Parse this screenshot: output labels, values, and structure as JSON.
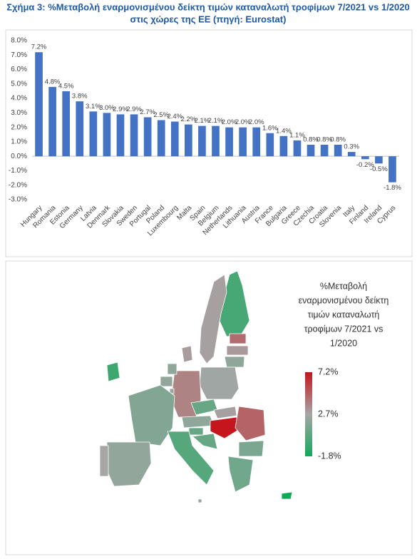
{
  "chart_data": [
    {
      "type": "bar",
      "title": [
        "Σχήμα 3: %Μεταβολή εναρμονισμένου δείκτη τιμών καταναλωτή τροφίμων 7/2021 vs 1/2020",
        "στις χώρες της ΕΕ (πηγή: Eurostat)"
      ],
      "categories": [
        "Hungary",
        "Romania",
        "Estonia",
        "Germany",
        "Latvia",
        "Denmark",
        "Slovakia",
        "Sweden",
        "Portugal",
        "Poland",
        "Luxembourg",
        "Malta",
        "Spain",
        "Belgium",
        "Netherlands",
        "Lithuania",
        "Austria",
        "France",
        "Bulgaria",
        "Greece",
        "Czechia",
        "Croatia",
        "Slovenia",
        "Italy",
        "Finland",
        "Ireland",
        "Cyprus"
      ],
      "values": [
        7.2,
        4.8,
        4.5,
        3.8,
        3.1,
        3.0,
        2.9,
        2.9,
        2.7,
        2.5,
        2.4,
        2.2,
        2.1,
        2.1,
        2.0,
        2.0,
        2.0,
        1.6,
        1.4,
        1.1,
        0.8,
        0.8,
        0.8,
        0.3,
        -0.2,
        -0.5,
        -1.8
      ],
      "value_labels": [
        "7.2%",
        "4.8%",
        "4.5%",
        "3.8%",
        "3.1%",
        "3.0%",
        "2.9%",
        "2.9%",
        "2.7%",
        "2.5%",
        "2.4%",
        "2.2%",
        "2.1%",
        "2.1%",
        "2.0%",
        "2.0%",
        "2.0%",
        "1.6%",
        "1.4%",
        "1.1%",
        "0.8%",
        "0.8%",
        "0.8%",
        "0.3%",
        "-0.2%",
        "-0.5%",
        "-1.8%"
      ],
      "color": "#4472c4",
      "ylim": [
        -3,
        8
      ],
      "yticks": [
        {
          "value": 8,
          "label": "8.0%"
        },
        {
          "value": 7,
          "label": "7.0%"
        },
        {
          "value": 6,
          "label": "6.0%"
        },
        {
          "value": 5,
          "label": "5.0%"
        },
        {
          "value": 4,
          "label": "4.0%"
        },
        {
          "value": 3,
          "label": "3.0%"
        },
        {
          "value": 2,
          "label": "2.0%"
        },
        {
          "value": 1,
          "label": "1.0%"
        },
        {
          "value": 0,
          "label": "0.0%"
        },
        {
          "value": -1,
          "label": "-1.0%"
        },
        {
          "value": -2,
          "label": "-2.0%"
        },
        {
          "value": -3,
          "label": "-3.0%"
        }
      ]
    },
    {
      "type": "map",
      "title": [
        "%Μεταβολή",
        "εναρμονισμένου δείκτη",
        "τιμών καταναλωτή",
        "τροφίμων 7/2021 vs",
        "1/2020"
      ],
      "colorscale": [
        {
          "value": 7.2,
          "label": "7.2%",
          "color": "#c4161c"
        },
        {
          "value": 2.7,
          "label": "2.7%",
          "color": "#a6a6a6"
        },
        {
          "value": -1.8,
          "label": "-1.8%",
          "color": "#12a85a"
        }
      ]
    }
  ]
}
